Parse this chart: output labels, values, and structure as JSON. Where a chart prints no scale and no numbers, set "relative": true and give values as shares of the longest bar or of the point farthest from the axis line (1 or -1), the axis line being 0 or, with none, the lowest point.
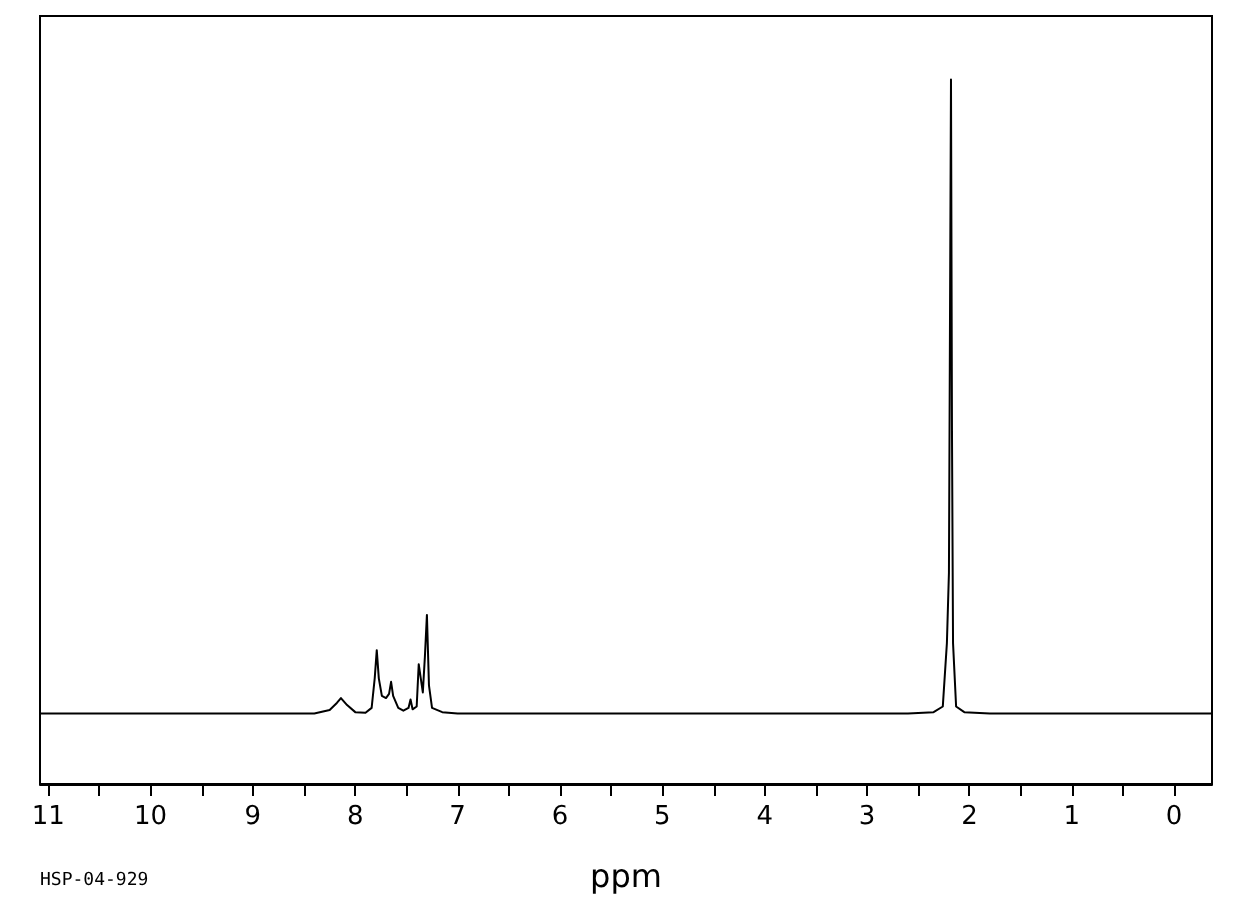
{
  "chart_data": {
    "type": "line",
    "relative": true,
    "xlabel": "ppm",
    "annotations": [
      "HSP-04-929"
    ],
    "tick_labels": "x",
    "grid": false,
    "marker": "none",
    "line_style": "solid",
    "xlim": [
      11.08,
      -0.37
    ],
    "xticks": [
      11,
      {
        "value": 10.5,
        "label": null
      },
      10,
      {
        "value": 9.5,
        "label": null
      },
      9,
      {
        "value": 8.5,
        "label": null
      },
      8,
      {
        "value": 7.5,
        "label": null
      },
      7,
      {
        "value": 6.5,
        "label": null
      },
      6,
      {
        "value": 5.5,
        "label": null
      },
      5,
      {
        "value": 4.5,
        "label": null
      },
      4,
      {
        "value": 3.5,
        "label": null
      },
      3,
      {
        "value": 2.5,
        "label": null
      },
      2,
      {
        "value": 1.5,
        "label": null
      },
      1,
      {
        "value": 0.5,
        "label": null
      },
      0
    ],
    "series": [
      {
        "color": "#000000",
        "x": [
          11.08,
          9.0,
          8.4,
          8.25,
          8.18,
          8.14,
          8.08,
          8.0,
          7.9,
          7.84,
          7.81,
          7.79,
          7.77,
          7.74,
          7.7,
          7.67,
          7.65,
          7.63,
          7.58,
          7.53,
          7.48,
          7.46,
          7.44,
          7.4,
          7.38,
          7.36,
          7.34,
          7.32,
          7.3,
          7.28,
          7.25,
          7.15,
          7.0,
          3.0,
          2.6,
          2.35,
          2.26,
          2.22,
          2.2,
          2.18,
          2.17,
          2.16,
          2.13,
          2.05,
          1.8,
          -0.37
        ],
        "values": [
          0.1,
          0.1,
          0.1,
          0.105,
          0.115,
          0.122,
          0.112,
          0.102,
          0.101,
          0.108,
          0.15,
          0.19,
          0.15,
          0.125,
          0.122,
          0.128,
          0.145,
          0.125,
          0.108,
          0.104,
          0.108,
          0.12,
          0.106,
          0.11,
          0.17,
          0.15,
          0.13,
          0.18,
          0.24,
          0.14,
          0.108,
          0.102,
          0.1,
          0.1,
          0.1,
          0.102,
          0.11,
          0.2,
          0.3,
          1,
          0.49,
          0.2,
          0.11,
          0.102,
          0.1,
          0.1
        ]
      }
    ]
  }
}
